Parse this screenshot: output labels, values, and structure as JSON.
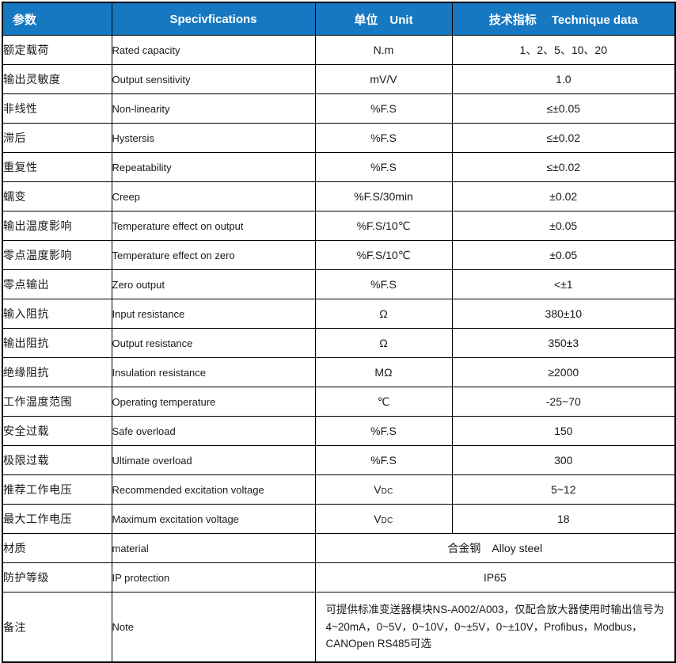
{
  "colors": {
    "header_bg": "#1778C2",
    "header_text": "#FFFFFF",
    "border": "#000000",
    "body_text": "#1A1A1A"
  },
  "table": {
    "header": {
      "param_cn": "参数",
      "spec_en": "Specivfications",
      "unit": "单位　Unit",
      "tech": "技术指标　 Technique data"
    },
    "rows": [
      {
        "cn": "额定载荷",
        "en": "Rated capacity",
        "unit": "N.m",
        "value": "1、2、5、10、20"
      },
      {
        "cn": "输出灵敏度",
        "en": "Output sensitivity",
        "unit": "mV/V",
        "value": "1.0"
      },
      {
        "cn": "非线性",
        "en": "Non-linearity",
        "unit": "%F.S",
        "value": "≤±0.05"
      },
      {
        "cn": "滞后",
        "en": "Hystersis",
        "unit": "%F.S",
        "value": "≤±0.02"
      },
      {
        "cn": "重复性",
        "en": "Repeatability",
        "unit": "%F.S",
        "value": "≤±0.02"
      },
      {
        "cn": "蠕变",
        "en": "Creep",
        "unit": "%F.S/30min",
        "value": "±0.02"
      },
      {
        "cn": "输出温度影响",
        "en": "Temperature effect on output",
        "unit": "%F.S/10℃",
        "value": "±0.05"
      },
      {
        "cn": "零点温度影响",
        "en": "Temperature effect on zero",
        "unit": "%F.S/10℃",
        "value": "±0.05"
      },
      {
        "cn": "零点输出",
        "en": "Zero output",
        "unit": "%F.S",
        "value": "<±1"
      },
      {
        "cn": "输入阻抗",
        "en": "Input resistance",
        "unit": "Ω",
        "value": "380±10"
      },
      {
        "cn": "输出阻抗",
        "en": "Output resistance",
        "unit": "Ω",
        "value": "350±3"
      },
      {
        "cn": "绝缘阻抗",
        "en": "Insulation resistance",
        "unit": "MΩ",
        "value": "≥2000"
      },
      {
        "cn": "工作温度范围",
        "en": "Operating temperature",
        "unit": "℃",
        "value": "-25~70"
      },
      {
        "cn": "安全过载",
        "en": "Safe overload",
        "unit": "%F.S",
        "value": "150"
      },
      {
        "cn": "极限过载",
        "en": "Ultimate overload",
        "unit": "%F.S",
        "value": "300"
      },
      {
        "cn": "推荐工作电压",
        "en": "Recommended excitation voltage",
        "unit": "V",
        "unit_sub": "DC",
        "value": "5~12"
      },
      {
        "cn": "最大工作电压",
        "en": "Maximum excitation voltage",
        "unit": "V",
        "unit_sub": "DC",
        "value": "18"
      },
      {
        "cn": "材质",
        "en": "material",
        "span": "合金钢　Alloy steel"
      },
      {
        "cn": "防护等级",
        "en": "IP protection",
        "span": "IP65"
      },
      {
        "cn": "备注",
        "en": "Note",
        "span": "可提供标准变送器模块NS-A002/A003，仅配合放大器使用时输出信号为4~20mA，0~5V，0~10V，0~±5V，0~±10V，Profibus，Modbus，CANOpen RS485可选",
        "align": "left",
        "tall": true
      }
    ]
  }
}
